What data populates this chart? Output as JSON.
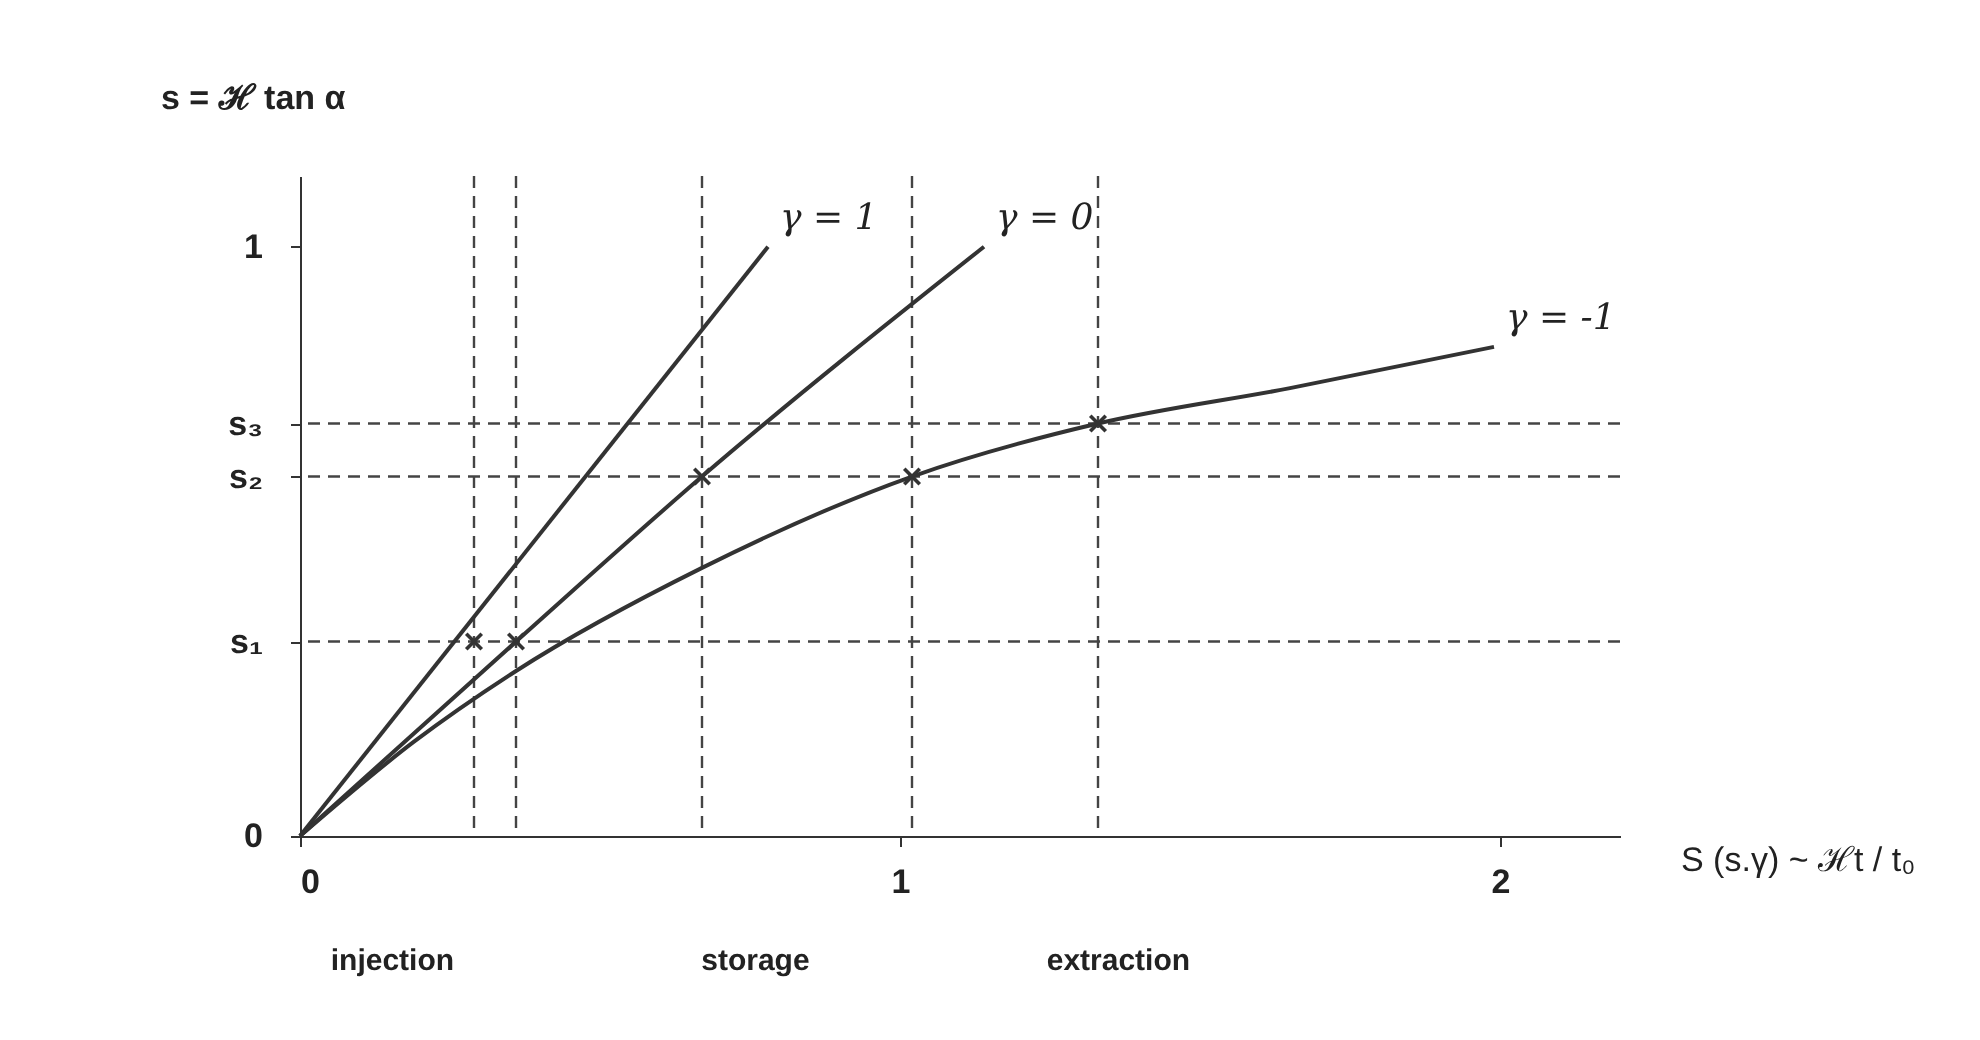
{
  "chart_data": {
    "type": "line",
    "xlabel": "S (s.γ) ~ ℋt / t₀",
    "ylabel": "s = ℋ tan α",
    "xlim": [
      0,
      2.2
    ],
    "xticks": [
      0,
      1,
      2
    ],
    "ylim": [
      0,
      1.12
    ],
    "yticks": [
      0,
      {
        "value": 0.33,
        "label": "s₁"
      },
      {
        "value": 0.61,
        "label": "s₂"
      },
      {
        "value": 0.7,
        "label": "s₃"
      },
      1
    ],
    "grid": false,
    "legend": false,
    "series": [
      {
        "name": "γ = 1",
        "color": "#333333",
        "x": [
          0,
          0.78
        ],
        "values": [
          0,
          1
        ]
      },
      {
        "name": "γ = 0",
        "color": "#333333",
        "x": [
          0,
          0.36,
          0.67,
          1.14
        ],
        "values": [
          0,
          0.33,
          0.61,
          1
        ]
      },
      {
        "name": "γ = -1",
        "color": "#333333",
        "x": [
          0,
          0.19,
          0.36,
          0.67,
          1.02,
          1.33,
          1.65,
          1.99
        ],
        "values": [
          0,
          0.16,
          0.28,
          0.455,
          0.61,
          0.7,
          0.76,
          0.83
        ]
      },
      {
        "type": "scatter",
        "marker": "cross",
        "color": "#333333",
        "x": [
          0.29,
          0.36,
          0.67,
          1.02,
          1.33
        ],
        "values": [
          0.33,
          0.33,
          0.61,
          0.61,
          0.7
        ]
      }
    ],
    "ref_lines": [
      {
        "axis": "y",
        "value": 0.33,
        "line_style": "dashed"
      },
      {
        "axis": "y",
        "value": 0.61,
        "line_style": "dashed"
      },
      {
        "axis": "y",
        "value": 0.7,
        "line_style": "dashed"
      },
      {
        "axis": "x",
        "value": 0.29,
        "line_style": "dashed"
      },
      {
        "axis": "x",
        "value": 0.36,
        "line_style": "dashed"
      },
      {
        "axis": "x",
        "value": 0.67,
        "line_style": "dashed"
      },
      {
        "axis": "x",
        "value": 1.02,
        "line_style": "dashed"
      },
      {
        "axis": "x",
        "value": 1.33,
        "line_style": "dashed"
      }
    ],
    "annotations": [
      "injection",
      "storage",
      "extraction"
    ]
  }
}
